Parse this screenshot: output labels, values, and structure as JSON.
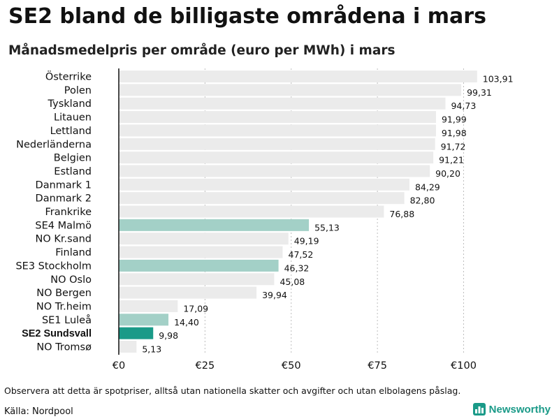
{
  "header": {
    "title": "SE2 bland de billigaste områdena i mars",
    "subtitle": "Månadsmedelpris per område (euro per MWh) i mars"
  },
  "footer": {
    "note": "Observera att detta är spotpriser, alltså utan nationella skatter och avgifter och utan elbolagens påslag.",
    "source": "Källa: Nordpool",
    "brand": "Newsworthy"
  },
  "colors": {
    "default_bar": "#ebebeb",
    "highlight_bar": "#a3d0c7",
    "focus_bar": "#1a9a88",
    "grid": "#bdbdbd",
    "axis": "#111111",
    "brand": "#1a9a88"
  },
  "chart_data": {
    "type": "bar",
    "orientation": "horizontal",
    "title": "SE2 bland de billigaste områdena i mars",
    "subtitle": "Månadsmedelpris per område (euro per MWh) i mars",
    "xlim": [
      0,
      105
    ],
    "ticks": [
      0,
      25,
      50,
      75,
      100
    ],
    "tick_labels": [
      "€0",
      "€25",
      "€50",
      "€75",
      "€100"
    ],
    "grid": true,
    "categories": [
      {
        "label": "Österrike",
        "value": 103.91,
        "value_label": "103,91",
        "style": "default"
      },
      {
        "label": "Polen",
        "value": 99.31,
        "value_label": "99,31",
        "style": "default"
      },
      {
        "label": "Tyskland",
        "value": 94.73,
        "value_label": "94,73",
        "style": "default"
      },
      {
        "label": "Litauen",
        "value": 91.99,
        "value_label": "91,99",
        "style": "default"
      },
      {
        "label": "Lettland",
        "value": 91.98,
        "value_label": "91,98",
        "style": "default"
      },
      {
        "label": "Nederländerna",
        "value": 91.72,
        "value_label": "91,72",
        "style": "default"
      },
      {
        "label": "Belgien",
        "value": 91.21,
        "value_label": "91,21",
        "style": "default"
      },
      {
        "label": "Estland",
        "value": 90.2,
        "value_label": "90,20",
        "style": "default"
      },
      {
        "label": "Danmark  1",
        "value": 84.29,
        "value_label": "84,29",
        "style": "default"
      },
      {
        "label": "Danmark  2",
        "value": 82.8,
        "value_label": "82,80",
        "style": "default"
      },
      {
        "label": "Frankrike",
        "value": 76.88,
        "value_label": "76,88",
        "style": "default"
      },
      {
        "label": "SE4  Malmö",
        "value": 55.13,
        "value_label": "55,13",
        "style": "highlight"
      },
      {
        "label": "NO  Kr.sand",
        "value": 49.19,
        "value_label": "49,19",
        "style": "default"
      },
      {
        "label": "Finland",
        "value": 47.52,
        "value_label": "47,52",
        "style": "default"
      },
      {
        "label": "SE3  Stockholm",
        "value": 46.32,
        "value_label": "46,32",
        "style": "highlight"
      },
      {
        "label": "NO  Oslo",
        "value": 45.08,
        "value_label": "45,08",
        "style": "default"
      },
      {
        "label": "NO  Bergen",
        "value": 39.94,
        "value_label": "39,94",
        "style": "default"
      },
      {
        "label": "NO  Tr.heim",
        "value": 17.09,
        "value_label": "17,09",
        "style": "default"
      },
      {
        "label": "SE1  Luleå",
        "value": 14.4,
        "value_label": "14,40",
        "style": "highlight"
      },
      {
        "label": "SE2 Sundsvall",
        "value": 9.98,
        "value_label": "9,98",
        "style": "focus"
      },
      {
        "label": "NO  Tromsø",
        "value": 5.13,
        "value_label": "5,13",
        "style": "default"
      }
    ]
  }
}
